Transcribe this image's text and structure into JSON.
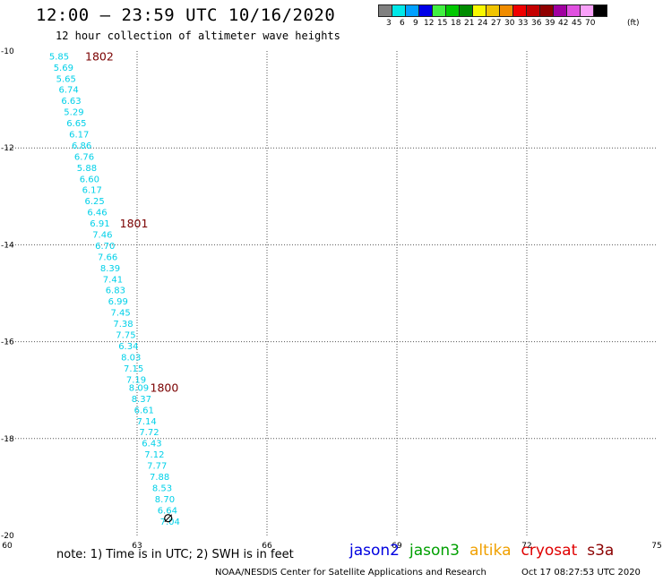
{
  "header": {
    "title": "12:00 – 23:59 UTC 10/16/2020",
    "subtitle": "12 hour collection of altimeter wave heights"
  },
  "legend": {
    "unit": "(ft)",
    "bins": [
      {
        "label": "3",
        "color": "#808080"
      },
      {
        "label": "6",
        "color": "#00e8e8"
      },
      {
        "label": "9",
        "color": "#00a0ff"
      },
      {
        "label": "12",
        "color": "#0000e8"
      },
      {
        "label": "15",
        "color": "#40f040"
      },
      {
        "label": "18",
        "color": "#00c800"
      },
      {
        "label": "21",
        "color": "#008c00"
      },
      {
        "label": "24",
        "color": "#f8f800"
      },
      {
        "label": "27",
        "color": "#f0c400"
      },
      {
        "label": "30",
        "color": "#f08c00"
      },
      {
        "label": "33",
        "color": "#f00000"
      },
      {
        "label": "36",
        "color": "#c40000"
      },
      {
        "label": "39",
        "color": "#900000"
      },
      {
        "label": "42",
        "color": "#a000a0"
      },
      {
        "label": "45",
        "color": "#e050e0"
      },
      {
        "label": "70",
        "color": "#f8a0f8"
      },
      {
        "label": "",
        "color": "#000000"
      }
    ]
  },
  "chart_data": {
    "type": "scatter",
    "xlim": [
      60,
      75
    ],
    "ylim": [
      -20,
      -10
    ],
    "x_ticks": [
      60,
      63,
      66,
      69,
      72,
      75
    ],
    "y_ticks": [
      -10,
      -12,
      -14,
      -16,
      -18,
      -20
    ],
    "grid": true,
    "point_color": "#00d0e8",
    "time_label_color": "#7a0000",
    "points": [
      {
        "lon": 61.2,
        "lat": -10.1,
        "swh": "5.85"
      },
      {
        "lon": 61.3,
        "lat": -10.33,
        "swh": "5.69"
      },
      {
        "lon": 61.36,
        "lat": -10.56,
        "swh": "5.65"
      },
      {
        "lon": 61.42,
        "lat": -10.79,
        "swh": "6.74"
      },
      {
        "lon": 61.48,
        "lat": -11.02,
        "swh": "6.63"
      },
      {
        "lon": 61.54,
        "lat": -11.25,
        "swh": "5.29"
      },
      {
        "lon": 61.6,
        "lat": -11.48,
        "swh": "6.65"
      },
      {
        "lon": 61.66,
        "lat": -11.71,
        "swh": "6.17"
      },
      {
        "lon": 61.72,
        "lat": -11.94,
        "swh": "6.86"
      },
      {
        "lon": 61.78,
        "lat": -12.17,
        "swh": "6.76"
      },
      {
        "lon": 61.84,
        "lat": -12.4,
        "swh": "5.88"
      },
      {
        "lon": 61.9,
        "lat": -12.63,
        "swh": "6.60"
      },
      {
        "lon": 61.96,
        "lat": -12.86,
        "swh": "6.17"
      },
      {
        "lon": 62.02,
        "lat": -13.09,
        "swh": "6.25"
      },
      {
        "lon": 62.08,
        "lat": -13.32,
        "swh": "6.46"
      },
      {
        "lon": 62.14,
        "lat": -13.55,
        "swh": "6.91"
      },
      {
        "lon": 62.2,
        "lat": -13.78,
        "swh": "7.46"
      },
      {
        "lon": 62.26,
        "lat": -14.01,
        "swh": "6.70"
      },
      {
        "lon": 62.32,
        "lat": -14.24,
        "swh": "7.66"
      },
      {
        "lon": 62.38,
        "lat": -14.47,
        "swh": "8.39"
      },
      {
        "lon": 62.44,
        "lat": -14.7,
        "swh": "7.41"
      },
      {
        "lon": 62.5,
        "lat": -14.93,
        "swh": "6.83"
      },
      {
        "lon": 62.56,
        "lat": -15.16,
        "swh": "6.99"
      },
      {
        "lon": 62.62,
        "lat": -15.39,
        "swh": "7.45"
      },
      {
        "lon": 62.68,
        "lat": -15.62,
        "swh": "7.38"
      },
      {
        "lon": 62.74,
        "lat": -15.85,
        "swh": "7.75"
      },
      {
        "lon": 62.8,
        "lat": -16.08,
        "swh": "6.34"
      },
      {
        "lon": 62.86,
        "lat": -16.31,
        "swh": "8.03"
      },
      {
        "lon": 62.92,
        "lat": -16.54,
        "swh": "7.15"
      },
      {
        "lon": 62.98,
        "lat": -16.77,
        "swh": "7.19"
      },
      {
        "lon": 63.04,
        "lat": -16.94,
        "swh": "8.09"
      },
      {
        "lon": 63.1,
        "lat": -17.17,
        "swh": "8.37"
      },
      {
        "lon": 63.16,
        "lat": -17.4,
        "swh": "6.61"
      },
      {
        "lon": 63.22,
        "lat": -17.63,
        "swh": "7.14"
      },
      {
        "lon": 63.28,
        "lat": -17.86,
        "swh": "7.72"
      },
      {
        "lon": 63.34,
        "lat": -18.09,
        "swh": "6.43"
      },
      {
        "lon": 63.4,
        "lat": -18.32,
        "swh": "7.12"
      },
      {
        "lon": 63.46,
        "lat": -18.55,
        "swh": "7.77"
      },
      {
        "lon": 63.52,
        "lat": -18.78,
        "swh": "7.88"
      },
      {
        "lon": 63.58,
        "lat": -19.01,
        "swh": "8.53"
      },
      {
        "lon": 63.64,
        "lat": -19.24,
        "swh": "8.70"
      },
      {
        "lon": 63.7,
        "lat": -19.47,
        "swh": "6.64"
      },
      {
        "lon": 63.76,
        "lat": -19.7,
        "swh": "7.04"
      }
    ],
    "time_labels": [
      {
        "lon": 61.8,
        "lat": -10.1,
        "text": "1802"
      },
      {
        "lon": 62.6,
        "lat": -13.55,
        "text": "1801"
      },
      {
        "lon": 63.3,
        "lat": -16.94,
        "text": "1800"
      }
    ]
  },
  "footer": {
    "note": "note: 1) Time is in UTC; 2) SWH is in feet",
    "satellites": [
      {
        "name": "jason2",
        "color": "#0000e0"
      },
      {
        "name": "jason3",
        "color": "#00a000"
      },
      {
        "name": "altika",
        "color": "#f0a000"
      },
      {
        "name": "cryosat",
        "color": "#e00000"
      },
      {
        "name": "s3a",
        "color": "#8b0000"
      }
    ],
    "credit": "NOAA/NESDIS Center for Satellite Applications and Research",
    "timestamp": "Oct 17 08:27:53 UTC 2020"
  }
}
